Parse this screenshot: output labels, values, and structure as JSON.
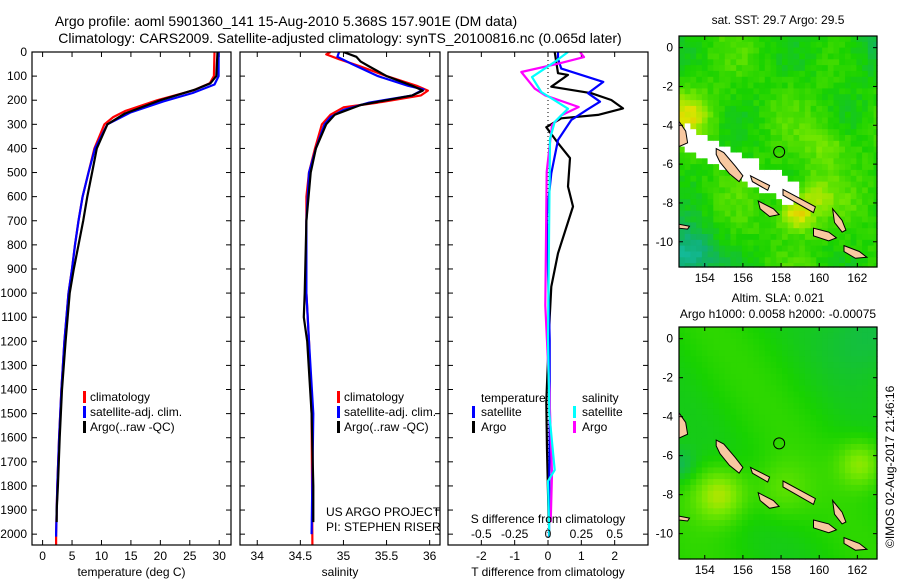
{
  "title": {
    "line1": "Argo profile: aoml 5901360_141 15-Aug-2010 5.368S 157.901E (DM data)",
    "line2": "Climatology: CARS2009. Satellite-adjusted climatology: synTS_20100816.nc (0.065d later)"
  },
  "credit": {
    "project": "US ARGO PROJECT",
    "pi": "PI: STEPHEN RISER"
  },
  "timestamp": "©IMOS 02-Aug-2017 21:46:16",
  "chart_data": [
    {
      "id": "temperature",
      "type": "line",
      "xlabel": "temperature (deg C)",
      "ylabel": "",
      "xlim": [
        -1.8,
        32
      ],
      "ylim": [
        2045,
        0
      ],
      "xticks": [
        "0",
        "5",
        "10",
        "15",
        "20",
        "25",
        "30"
      ],
      "yticks": [
        "0",
        "100",
        "200",
        "300",
        "400",
        "500",
        "600",
        "700",
        "800",
        "900",
        "1000",
        "1100",
        "1200",
        "1300",
        "1400",
        "1500",
        "1600",
        "1700",
        "1800",
        "1900",
        "2000"
      ],
      "legend": [
        {
          "label": "climatology",
          "color": "#ff0000"
        },
        {
          "label": "satellite-adj. clim.",
          "color": "#0000ff"
        },
        {
          "label": "Argo(..raw -QC)",
          "color": "#000000"
        }
      ],
      "series": [
        {
          "name": "climatology",
          "color": "#ff0000",
          "points": [
            [
              29.2,
              0
            ],
            [
              29.1,
              100
            ],
            [
              28.4,
              130
            ],
            [
              25.5,
              160
            ],
            [
              19.5,
              200
            ],
            [
              14,
              245
            ],
            [
              12,
              270
            ],
            [
              10.5,
              300
            ],
            [
              8.8,
              400
            ],
            [
              7.8,
              500
            ],
            [
              6.8,
              600
            ],
            [
              6.1,
              700
            ],
            [
              5.5,
              800
            ],
            [
              5.0,
              900
            ],
            [
              4.4,
              1000
            ],
            [
              3.7,
              1200
            ],
            [
              3.2,
              1400
            ],
            [
              2.8,
              1600
            ],
            [
              2.5,
              1800
            ],
            [
              2.3,
              2000
            ],
            [
              2.3,
              2045
            ]
          ]
        },
        {
          "name": "satellite-adj. clim.",
          "color": "#0000ff",
          "points": [
            [
              29.9,
              0
            ],
            [
              29.9,
              100
            ],
            [
              29.2,
              135
            ],
            [
              25.5,
              170
            ],
            [
              20.5,
              205
            ],
            [
              15,
              250
            ],
            [
              11,
              300
            ],
            [
              8.9,
              400
            ],
            [
              7.8,
              500
            ],
            [
              6.8,
              600
            ],
            [
              6.1,
              700
            ],
            [
              5.5,
              800
            ],
            [
              5.0,
              900
            ],
            [
              4.4,
              1000
            ],
            [
              3.7,
              1200
            ],
            [
              3.2,
              1400
            ],
            [
              2.8,
              1600
            ],
            [
              2.5,
              1800
            ],
            [
              2.3,
              2000
            ],
            [
              2.3,
              2010
            ]
          ]
        },
        {
          "name": "Argo",
          "color": "#000000",
          "points": [
            [
              29.7,
              0
            ],
            [
              29.5,
              100
            ],
            [
              28.5,
              130
            ],
            [
              26,
              155
            ],
            [
              20,
              200
            ],
            [
              14,
              255
            ],
            [
              11,
              300
            ],
            [
              9.2,
              400
            ],
            [
              8.4,
              500
            ],
            [
              7.6,
              600
            ],
            [
              6.9,
              700
            ],
            [
              6.1,
              800
            ],
            [
              5.3,
              900
            ],
            [
              4.6,
              1000
            ],
            [
              3.9,
              1200
            ],
            [
              3.3,
              1400
            ],
            [
              2.9,
              1600
            ],
            [
              2.6,
              1800
            ],
            [
              2.4,
              1900
            ],
            [
              2.4,
              1950
            ]
          ]
        }
      ]
    },
    {
      "id": "salinity",
      "type": "line",
      "xlabel": "salinity",
      "xlim": [
        33.8,
        36.12
      ],
      "ylim": [
        2045,
        0
      ],
      "xticks": [
        "34",
        "34.5",
        "35",
        "35.5",
        "36"
      ],
      "legend": [
        {
          "label": "climatology",
          "color": "#ff0000"
        },
        {
          "label": "satellite-adj. clim.",
          "color": "#0000ff"
        },
        {
          "label": "Argo(..raw -QC)",
          "color": "#000000"
        }
      ],
      "series": [
        {
          "name": "climatology",
          "color": "#ff0000",
          "points": [
            [
              34.85,
              0
            ],
            [
              34.8,
              10
            ],
            [
              34.95,
              30
            ],
            [
              35.2,
              60
            ],
            [
              35.5,
              100
            ],
            [
              35.85,
              140
            ],
            [
              35.98,
              160
            ],
            [
              35.9,
              180
            ],
            [
              35.4,
              210
            ],
            [
              35.0,
              230
            ],
            [
              34.85,
              260
            ],
            [
              34.75,
              300
            ],
            [
              34.67,
              400
            ],
            [
              34.6,
              500
            ],
            [
              34.57,
              600
            ],
            [
              34.57,
              800
            ],
            [
              34.57,
              1000
            ],
            [
              34.6,
              1200
            ],
            [
              34.63,
              1500
            ],
            [
              34.64,
              2045
            ]
          ]
        },
        {
          "name": "satellite-adj. clim.",
          "color": "#0000ff",
          "points": [
            [
              34.95,
              0
            ],
            [
              34.93,
              20
            ],
            [
              35.1,
              50
            ],
            [
              35.4,
              100
            ],
            [
              35.75,
              140
            ],
            [
              35.93,
              155
            ],
            [
              35.8,
              180
            ],
            [
              35.3,
              210
            ],
            [
              35.0,
              240
            ],
            [
              34.85,
              270
            ],
            [
              34.78,
              300
            ],
            [
              34.68,
              400
            ],
            [
              34.6,
              500
            ],
            [
              34.57,
              700
            ],
            [
              34.57,
              1000
            ],
            [
              34.6,
              1200
            ],
            [
              34.65,
              1500
            ],
            [
              34.63,
              2000
            ]
          ]
        },
        {
          "name": "Argo",
          "color": "#000000",
          "points": [
            [
              35.0,
              0
            ],
            [
              35.15,
              20
            ],
            [
              35.2,
              40
            ],
            [
              35.3,
              60
            ],
            [
              35.5,
              100
            ],
            [
              35.8,
              140
            ],
            [
              35.92,
              160
            ],
            [
              35.8,
              180
            ],
            [
              35.2,
              220
            ],
            [
              34.9,
              260
            ],
            [
              34.8,
              300
            ],
            [
              34.68,
              400
            ],
            [
              34.62,
              500
            ],
            [
              34.57,
              700
            ],
            [
              34.55,
              1000
            ],
            [
              34.54,
              1100
            ],
            [
              34.58,
              1200
            ],
            [
              34.63,
              1500
            ],
            [
              34.65,
              1800
            ],
            [
              34.65,
              1950
            ]
          ]
        }
      ]
    },
    {
      "id": "difference",
      "type": "line",
      "xlabel": "T difference from climatology",
      "xlabel2": "S difference from climatology",
      "xlim": [
        -3,
        3
      ],
      "xlim_salinity": [
        -0.75,
        0.75
      ],
      "ylim": [
        2045,
        0
      ],
      "xticks": [
        "-2",
        "-1",
        "0",
        "1",
        "2"
      ],
      "xticks_salinity": [
        "-0.5",
        "-0.25",
        "0",
        "0.25",
        "0.5"
      ],
      "legend_headers": {
        "temperature": "temperature",
        "salinity": "salinity"
      },
      "legend": [
        {
          "label": "satellite",
          "color": "#0000ff",
          "group": "temperature"
        },
        {
          "label": "Argo",
          "color": "#000000",
          "group": "temperature"
        },
        {
          "label": "satellite",
          "color": "#00ffff",
          "group": "salinity"
        },
        {
          "label": "Argo",
          "color": "#ff00ff",
          "group": "salinity"
        }
      ],
      "series": [
        {
          "name": "T Argo",
          "axis": "T",
          "color": "#000000",
          "points": [
            [
              0.2,
              0
            ],
            [
              0.3,
              88
            ],
            [
              0.6,
              95
            ],
            [
              0.1,
              144
            ],
            [
              1.3,
              171
            ],
            [
              1.9,
              199
            ],
            [
              2.25,
              234
            ],
            [
              1.5,
              261
            ],
            [
              0.4,
              275
            ],
            [
              -0.05,
              312
            ],
            [
              0.3,
              378
            ],
            [
              0.66,
              440
            ],
            [
              0.6,
              558
            ],
            [
              0.75,
              641
            ],
            [
              0.3,
              835
            ],
            [
              0.1,
              973
            ],
            [
              0.05,
              1100
            ],
            [
              -0.05,
              1450
            ],
            [
              -0.03,
              1650
            ],
            [
              0.02,
              1950
            ]
          ]
        },
        {
          "name": "T satellite",
          "axis": "T",
          "color": "#0000ff",
          "points": [
            [
              0.3,
              0
            ],
            [
              0.3,
              28
            ],
            [
              0.4,
              69
            ],
            [
              1.66,
              124
            ],
            [
              1.2,
              171
            ],
            [
              1.56,
              206
            ],
            [
              1.16,
              240
            ],
            [
              0.7,
              282
            ],
            [
              0.3,
              365
            ],
            [
              0.1,
              503
            ],
            [
              -0.04,
              683
            ],
            [
              0.05,
              1195
            ],
            [
              0.05,
              1500
            ],
            [
              0.03,
              2010
            ]
          ]
        },
        {
          "name": "S Argo",
          "axis": "S",
          "color": "#ff00ff",
          "points": [
            [
              0.24,
              0
            ],
            [
              0.27,
              21
            ],
            [
              0.08,
              48
            ],
            [
              -0.2,
              83
            ],
            [
              -0.1,
              152
            ],
            [
              -0.02,
              180
            ],
            [
              0.23,
              228
            ],
            [
              0.1,
              263
            ],
            [
              0.03,
              304
            ],
            [
              -0.01,
              497
            ],
            [
              -0.02,
              1051
            ],
            [
              0.01,
              1400
            ],
            [
              0.03,
              1750
            ],
            [
              0.02,
              1950
            ]
          ]
        },
        {
          "name": "S satellite",
          "axis": "S",
          "color": "#00ffff",
          "points": [
            [
              0.15,
              0
            ],
            [
              0.05,
              41
            ],
            [
              -0.12,
              104
            ],
            [
              -0.05,
              166
            ],
            [
              0.15,
              235
            ],
            [
              0.05,
              290
            ],
            [
              0.015,
              360
            ],
            [
              0,
              1190
            ],
            [
              0.01,
              1500
            ],
            [
              0.05,
              1734
            ],
            [
              0,
              1780
            ],
            [
              0.01,
              2010
            ]
          ]
        }
      ]
    },
    {
      "id": "map-sst",
      "type": "heatmap",
      "title": "sat. SST: 29.7 Argo: 29.5",
      "xlim": [
        152.65,
        163.03
      ],
      "ylim": [
        -11.3,
        0.6
      ],
      "xticks": [
        "154",
        "156",
        "158",
        "160",
        "162"
      ],
      "yticks": [
        "0",
        "-2",
        "-4",
        "-6",
        "-8",
        "-10"
      ],
      "marker": {
        "lon": 157.901,
        "lat": -5.368
      }
    },
    {
      "id": "map-sla",
      "type": "heatmap",
      "title": "Altim. SLA: 0.021",
      "subtitle": "Argo h1000: 0.0058 h2000: -0.00075",
      "xlim": [
        152.65,
        163.03
      ],
      "ylim": [
        -11.3,
        0.6
      ],
      "xticks": [
        "154",
        "156",
        "158",
        "160",
        "162"
      ],
      "yticks": [
        "0",
        "-2",
        "-4",
        "-6",
        "-8",
        "-10"
      ],
      "marker": {
        "lon": 157.901,
        "lat": -5.368
      }
    }
  ]
}
